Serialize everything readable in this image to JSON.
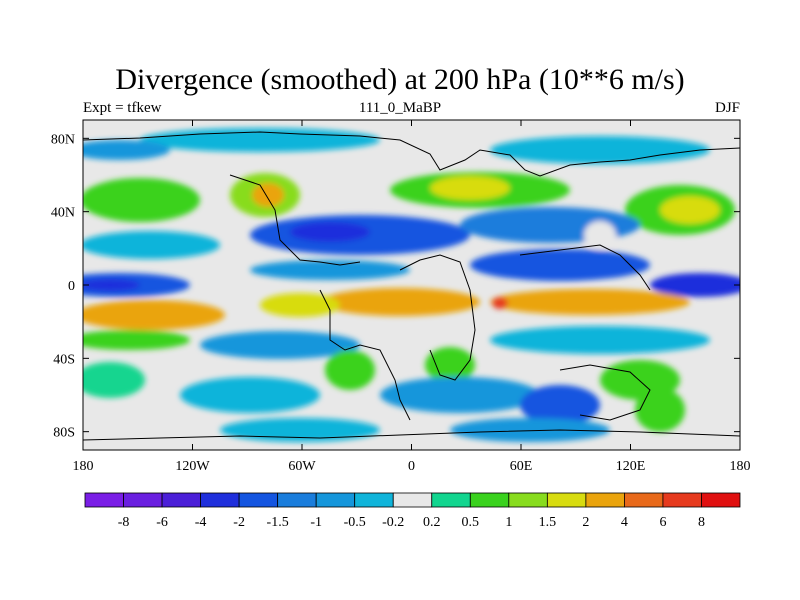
{
  "title": "Divergence (smoothed) at 200 hPa (10**6 m/s)",
  "left_label": "Expt = tfkew",
  "center_label": "111_0_MaBP",
  "right_label": "DJF",
  "chart_data": {
    "type": "heatmap",
    "title": "Divergence (smoothed) at 200 hPa (10**6 m/s)",
    "xlabel": "",
    "ylabel": "",
    "xlim": [
      -180,
      180
    ],
    "ylim": [
      -90,
      90
    ],
    "x_ticks": [
      "180",
      "120W",
      "60W",
      "0",
      "60E",
      "120E",
      "180"
    ],
    "y_ticks": [
      "80N",
      "40N",
      "0",
      "40S",
      "80S"
    ],
    "colorbar": {
      "labels": [
        "-8",
        "-6",
        "-4",
        "-2",
        "-1.5",
        "-1",
        "-0.5",
        "-0.2",
        "0.2",
        "0.5",
        "1",
        "1.5",
        "2",
        "4",
        "6",
        "8"
      ],
      "colors": [
        "#7a1ee6",
        "#6a1fe0",
        "#4b1fd8",
        "#1f2fdc",
        "#1455e0",
        "#1a7ddc",
        "#1596db",
        "#10b4da",
        "#e8e8e8",
        "#12d58f",
        "#3ad21e",
        "#88dc1e",
        "#d8dc10",
        "#eaa40d",
        "#e8691a",
        "#e63a1e",
        "#e01010"
      ]
    },
    "bands": [
      {
        "latitude": 78,
        "value": -1
      },
      {
        "latitude": 50,
        "value": 1
      },
      {
        "latitude": 25,
        "value": -2
      },
      {
        "latitude": 0,
        "value": -4
      },
      {
        "latitude": -12,
        "value": 2
      },
      {
        "latitude": -28,
        "value": 1
      },
      {
        "latitude": -45,
        "value": -1
      },
      {
        "latitude": -62,
        "value": -1.5
      }
    ]
  }
}
